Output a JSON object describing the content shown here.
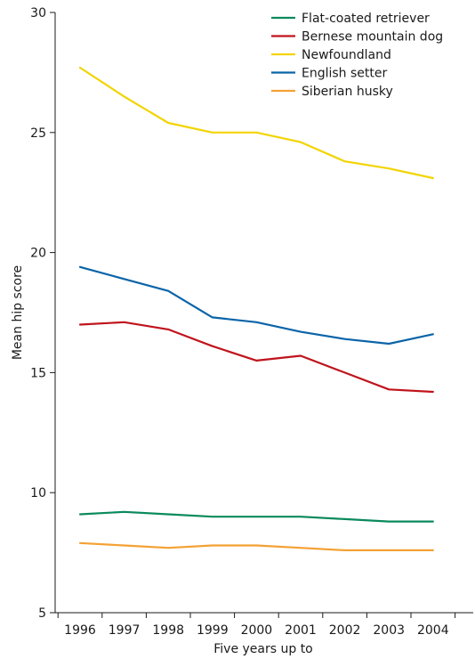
{
  "chart_data": {
    "type": "line",
    "title": "",
    "xlabel": "Five years up to",
    "ylabel": "Mean hip score",
    "x": [
      "1996",
      "1997",
      "1998",
      "1999",
      "2000",
      "2001",
      "2002",
      "2003",
      "2004"
    ],
    "ylim": [
      5,
      30
    ],
    "yticks": [
      "5",
      "10",
      "15",
      "20",
      "25",
      "30"
    ],
    "grid": false,
    "legend_position": "top-right",
    "series": [
      {
        "name": "Flat-coated retriever",
        "color": "#0a8a5c",
        "values": [
          9.1,
          9.2,
          9.1,
          9.0,
          9.0,
          9.0,
          8.9,
          8.8,
          8.8
        ]
      },
      {
        "name": "Bernese mountain dog",
        "color": "#c0141c",
        "values": [
          17.0,
          17.1,
          16.8,
          16.1,
          15.5,
          15.7,
          15.0,
          14.3,
          14.2
        ]
      },
      {
        "name": "Newfoundland",
        "color": "#f2d400",
        "values": [
          27.7,
          26.5,
          25.4,
          25.0,
          25.0,
          24.6,
          23.8,
          23.5,
          23.1
        ]
      },
      {
        "name": "English setter",
        "color": "#0a64a8",
        "values": [
          19.4,
          18.9,
          18.4,
          17.3,
          17.1,
          16.7,
          16.4,
          16.2,
          16.6
        ]
      },
      {
        "name": "Siberian husky",
        "color": "#f4a133",
        "values": [
          7.9,
          7.8,
          7.7,
          7.8,
          7.8,
          7.7,
          7.6,
          7.6,
          7.6
        ]
      }
    ]
  }
}
